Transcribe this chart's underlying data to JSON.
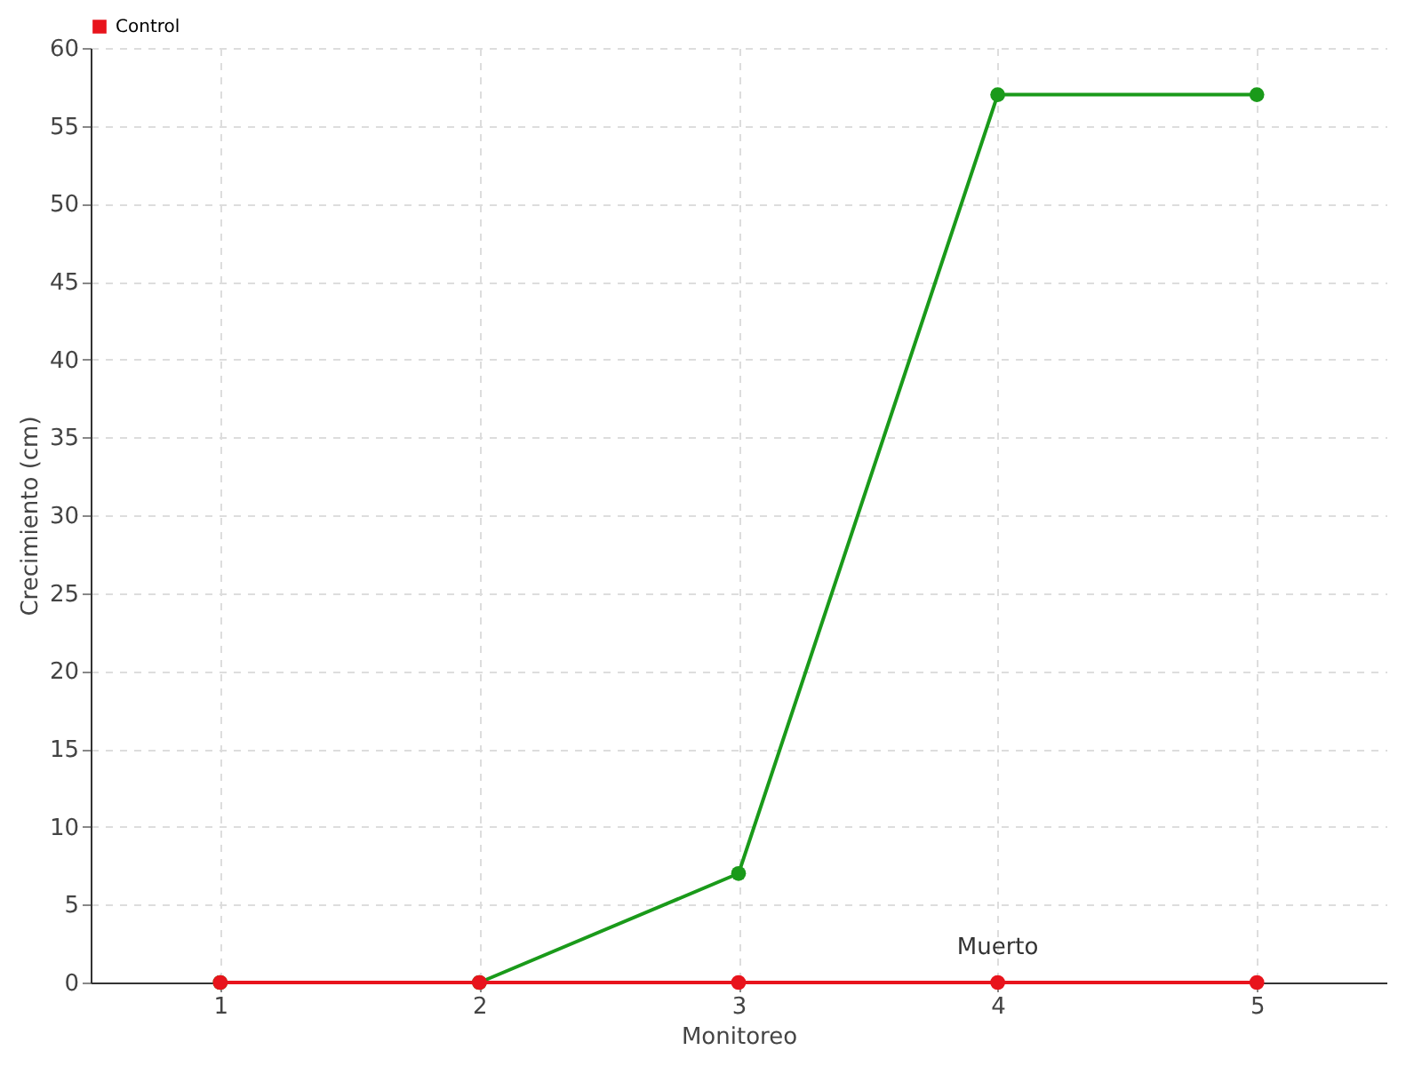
{
  "chart_data": {
    "type": "line",
    "xlabel": "Monitoreo",
    "ylabel": "Crecimiento (cm)",
    "x": [
      1,
      2,
      3,
      4,
      5
    ],
    "series": [
      {
        "color": "#1a9a1a",
        "values": [
          0,
          0,
          7,
          57,
          57
        ]
      },
      {
        "name": "Control",
        "color": "#e8141c",
        "values": [
          0,
          0,
          0,
          0,
          0
        ]
      }
    ],
    "xlim": [
      0.5,
      5.5
    ],
    "xticks": [
      1,
      2,
      3,
      4,
      5
    ],
    "ylim": [
      0,
      60
    ],
    "yticks": [
      0,
      5,
      10,
      15,
      20,
      25,
      30,
      35,
      40,
      45,
      50,
      55,
      60
    ],
    "annotations": [
      {
        "text": "Muerto",
        "x": 4,
        "y": 0
      }
    ],
    "grid": true,
    "legend": "top left",
    "marker": "circle",
    "line_style": "solid"
  }
}
